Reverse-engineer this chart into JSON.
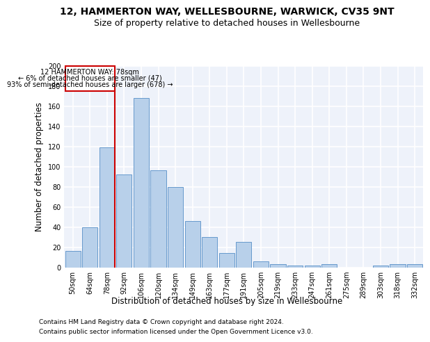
{
  "title1": "12, HAMMERTON WAY, WELLESBOURNE, WARWICK, CV35 9NT",
  "title2": "Size of property relative to detached houses in Wellesbourne",
  "xlabel": "Distribution of detached houses by size in Wellesbourne",
  "ylabel": "Number of detached properties",
  "footer1": "Contains HM Land Registry data © Crown copyright and database right 2024.",
  "footer2": "Contains public sector information licensed under the Open Government Licence v3.0.",
  "annotation_title": "12 HAMMERTON WAY: 78sqm",
  "annotation_line1": "← 6% of detached houses are smaller (47)",
  "annotation_line2": "93% of semi-detached houses are larger (678) →",
  "categories": [
    "50sqm",
    "64sqm",
    "78sqm",
    "92sqm",
    "106sqm",
    "120sqm",
    "134sqm",
    "149sqm",
    "163sqm",
    "177sqm",
    "191sqm",
    "205sqm",
    "219sqm",
    "233sqm",
    "247sqm",
    "261sqm",
    "275sqm",
    "289sqm",
    "303sqm",
    "318sqm",
    "332sqm"
  ],
  "values": [
    16,
    40,
    119,
    92,
    168,
    96,
    80,
    46,
    30,
    14,
    25,
    6,
    3,
    2,
    2,
    3,
    0,
    0,
    2,
    3,
    3
  ],
  "bar_color": "#b8d0ea",
  "bar_edge_color": "#6699cc",
  "vline_color": "#cc0000",
  "vline_x_index": 2,
  "box_color": "#cc0000",
  "ylim": [
    0,
    200
  ],
  "yticks": [
    0,
    20,
    40,
    60,
    80,
    100,
    120,
    140,
    160,
    180,
    200
  ],
  "bg_color": "#eef2fa",
  "grid_color": "#ffffff",
  "title1_fontsize": 10,
  "title2_fontsize": 9,
  "axis_label_fontsize": 8.5,
  "tick_fontsize": 7,
  "footer_fontsize": 6.5
}
